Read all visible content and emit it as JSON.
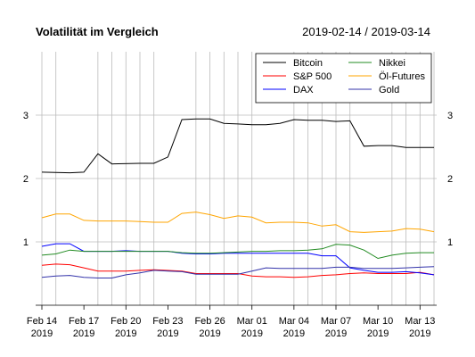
{
  "chart_data": {
    "type": "line",
    "title": "Volatilität im Vergleich",
    "date_range": "2019-02-14 / 2019-03-14",
    "xlabel": "",
    "ylabel": "",
    "ylim": [
      0,
      4
    ],
    "y_ticks": [
      1,
      2,
      3
    ],
    "grid": true,
    "legend_position": "top-right",
    "dates": [
      "2019-02-14",
      "2019-02-15",
      "2019-02-18",
      "2019-02-19",
      "2019-02-20",
      "2019-02-21",
      "2019-02-22",
      "2019-02-25",
      "2019-02-26",
      "2019-02-27",
      "2019-02-28",
      "2019-03-01",
      "2019-03-04",
      "2019-03-05",
      "2019-03-06",
      "2019-03-07",
      "2019-03-08",
      "2019-03-11",
      "2019-03-12",
      "2019-03-13",
      "2019-03-14"
    ],
    "x_tick_labels": [
      {
        "date": "2019-02-14",
        "label": "Feb 14",
        "year": "2019"
      },
      {
        "date": "2019-02-17",
        "label": "Feb 17",
        "year": "2019"
      },
      {
        "date": "2019-02-20",
        "label": "Feb 20",
        "year": "2019"
      },
      {
        "date": "2019-02-23",
        "label": "Feb 23",
        "year": "2019"
      },
      {
        "date": "2019-02-26",
        "label": "Feb 26",
        "year": "2019"
      },
      {
        "date": "2019-03-01",
        "label": "Mar 01",
        "year": "2019"
      },
      {
        "date": "2019-03-04",
        "label": "Mar 04",
        "year": "2019"
      },
      {
        "date": "2019-03-07",
        "label": "Mar 07",
        "year": "2019"
      },
      {
        "date": "2019-03-10",
        "label": "Mar 10",
        "year": "2019"
      },
      {
        "date": "2019-03-13",
        "label": "Mar 13",
        "year": "2019"
      }
    ],
    "series": [
      {
        "name": "Bitcoin",
        "color": "#000000",
        "data": [
          [
            "2019-02-14",
            2.1
          ],
          [
            "2019-02-16",
            2.09
          ],
          [
            "2019-02-17",
            2.1
          ],
          [
            "2019-02-18",
            2.39
          ],
          [
            "2019-02-19",
            2.23
          ],
          [
            "2019-02-21",
            2.24
          ],
          [
            "2019-02-22",
            2.24
          ],
          [
            "2019-02-23",
            2.34
          ],
          [
            "2019-02-24",
            2.93
          ],
          [
            "2019-02-25",
            2.94
          ],
          [
            "2019-02-26",
            2.94
          ],
          [
            "2019-02-27",
            2.87
          ],
          [
            "2019-02-28",
            2.86
          ],
          [
            "2019-03-01",
            2.85
          ],
          [
            "2019-03-02",
            2.85
          ],
          [
            "2019-03-03",
            2.87
          ],
          [
            "2019-03-04",
            2.93
          ],
          [
            "2019-03-05",
            2.92
          ],
          [
            "2019-03-06",
            2.92
          ],
          [
            "2019-03-07",
            2.9
          ],
          [
            "2019-03-08",
            2.91
          ],
          [
            "2019-03-09",
            2.51
          ],
          [
            "2019-03-10",
            2.52
          ],
          [
            "2019-03-11",
            2.52
          ],
          [
            "2019-03-12",
            2.49
          ],
          [
            "2019-03-13",
            2.49
          ],
          [
            "2019-03-14",
            2.49
          ]
        ]
      },
      {
        "name": "S&P 500",
        "color": "#ff0000",
        "data": [
          [
            "2019-02-14",
            0.63
          ],
          [
            "2019-02-15",
            0.65
          ],
          [
            "2019-02-16",
            0.64
          ],
          [
            "2019-02-17",
            0.59
          ],
          [
            "2019-02-18",
            0.54
          ],
          [
            "2019-02-19",
            0.54
          ],
          [
            "2019-02-20",
            0.54
          ],
          [
            "2019-02-21",
            0.55
          ],
          [
            "2019-02-22",
            0.56
          ],
          [
            "2019-02-24",
            0.54
          ],
          [
            "2019-02-25",
            0.5
          ],
          [
            "2019-02-26",
            0.5
          ],
          [
            "2019-02-27",
            0.5
          ],
          [
            "2019-02-28",
            0.5
          ],
          [
            "2019-03-01",
            0.46
          ],
          [
            "2019-03-02",
            0.45
          ],
          [
            "2019-03-03",
            0.45
          ],
          [
            "2019-03-04",
            0.44
          ],
          [
            "2019-03-05",
            0.45
          ],
          [
            "2019-03-06",
            0.47
          ],
          [
            "2019-03-07",
            0.48
          ],
          [
            "2019-03-08",
            0.5
          ],
          [
            "2019-03-09",
            0.51
          ],
          [
            "2019-03-10",
            0.5
          ],
          [
            "2019-03-11",
            0.5
          ],
          [
            "2019-03-12",
            0.5
          ],
          [
            "2019-03-13",
            0.52
          ],
          [
            "2019-03-14",
            0.48
          ]
        ]
      },
      {
        "name": "DAX",
        "color": "#0000ff",
        "data": [
          [
            "2019-02-14",
            0.93
          ],
          [
            "2019-02-15",
            0.97
          ],
          [
            "2019-02-16",
            0.97
          ],
          [
            "2019-02-17",
            0.85
          ],
          [
            "2019-02-18",
            0.85
          ],
          [
            "2019-02-19",
            0.85
          ],
          [
            "2019-02-20",
            0.86
          ],
          [
            "2019-02-21",
            0.85
          ],
          [
            "2019-02-22",
            0.85
          ],
          [
            "2019-02-23",
            0.85
          ],
          [
            "2019-02-24",
            0.82
          ],
          [
            "2019-02-25",
            0.81
          ],
          [
            "2019-02-26",
            0.81
          ],
          [
            "2019-02-27",
            0.82
          ],
          [
            "2019-02-28",
            0.82
          ],
          [
            "2019-03-01",
            0.82
          ],
          [
            "2019-03-02",
            0.82
          ],
          [
            "2019-03-03",
            0.82
          ],
          [
            "2019-03-04",
            0.82
          ],
          [
            "2019-03-05",
            0.82
          ],
          [
            "2019-03-06",
            0.78
          ],
          [
            "2019-03-07",
            0.78
          ],
          [
            "2019-03-08",
            0.59
          ],
          [
            "2019-03-09",
            0.55
          ],
          [
            "2019-03-10",
            0.52
          ],
          [
            "2019-03-11",
            0.52
          ],
          [
            "2019-03-12",
            0.53
          ],
          [
            "2019-03-13",
            0.51
          ],
          [
            "2019-03-14",
            0.48
          ]
        ]
      },
      {
        "name": "Nikkei",
        "color": "#228b22",
        "data": [
          [
            "2019-02-14",
            0.79
          ],
          [
            "2019-02-15",
            0.81
          ],
          [
            "2019-02-16",
            0.87
          ],
          [
            "2019-02-17",
            0.85
          ],
          [
            "2019-02-18",
            0.85
          ],
          [
            "2019-02-19",
            0.85
          ],
          [
            "2019-02-20",
            0.85
          ],
          [
            "2019-02-21",
            0.85
          ],
          [
            "2019-02-22",
            0.85
          ],
          [
            "2019-02-23",
            0.85
          ],
          [
            "2019-02-24",
            0.83
          ],
          [
            "2019-02-25",
            0.82
          ],
          [
            "2019-02-26",
            0.82
          ],
          [
            "2019-02-27",
            0.83
          ],
          [
            "2019-02-28",
            0.84
          ],
          [
            "2019-03-01",
            0.85
          ],
          [
            "2019-03-02",
            0.85
          ],
          [
            "2019-03-03",
            0.86
          ],
          [
            "2019-03-04",
            0.86
          ],
          [
            "2019-03-05",
            0.87
          ],
          [
            "2019-03-06",
            0.89
          ],
          [
            "2019-03-07",
            0.96
          ],
          [
            "2019-03-08",
            0.95
          ],
          [
            "2019-03-09",
            0.87
          ],
          [
            "2019-03-10",
            0.74
          ],
          [
            "2019-03-11",
            0.79
          ],
          [
            "2019-03-12",
            0.82
          ],
          [
            "2019-03-13",
            0.83
          ],
          [
            "2019-03-14",
            0.83
          ]
        ]
      },
      {
        "name": "Öl-Futures",
        "color": "#ffa500",
        "data": [
          [
            "2019-02-14",
            1.38
          ],
          [
            "2019-02-15",
            1.44
          ],
          [
            "2019-02-16",
            1.44
          ],
          [
            "2019-02-17",
            1.34
          ],
          [
            "2019-02-18",
            1.33
          ],
          [
            "2019-02-19",
            1.33
          ],
          [
            "2019-02-20",
            1.33
          ],
          [
            "2019-02-21",
            1.32
          ],
          [
            "2019-02-22",
            1.31
          ],
          [
            "2019-02-23",
            1.31
          ],
          [
            "2019-02-24",
            1.45
          ],
          [
            "2019-02-25",
            1.47
          ],
          [
            "2019-02-26",
            1.43
          ],
          [
            "2019-02-27",
            1.37
          ],
          [
            "2019-02-28",
            1.41
          ],
          [
            "2019-03-01",
            1.39
          ],
          [
            "2019-03-02",
            1.3
          ],
          [
            "2019-03-03",
            1.31
          ],
          [
            "2019-03-04",
            1.31
          ],
          [
            "2019-03-05",
            1.3
          ],
          [
            "2019-03-06",
            1.25
          ],
          [
            "2019-03-07",
            1.27
          ],
          [
            "2019-03-08",
            1.16
          ],
          [
            "2019-03-09",
            1.15
          ],
          [
            "2019-03-10",
            1.16
          ],
          [
            "2019-03-11",
            1.17
          ],
          [
            "2019-03-12",
            1.21
          ],
          [
            "2019-03-13",
            1.2
          ],
          [
            "2019-03-14",
            1.16
          ]
        ]
      },
      {
        "name": "Gold",
        "color": "#3333aa",
        "data": [
          [
            "2019-02-14",
            0.44
          ],
          [
            "2019-02-15",
            0.46
          ],
          [
            "2019-02-16",
            0.47
          ],
          [
            "2019-02-17",
            0.44
          ],
          [
            "2019-02-18",
            0.43
          ],
          [
            "2019-02-19",
            0.43
          ],
          [
            "2019-02-20",
            0.48
          ],
          [
            "2019-02-21",
            0.51
          ],
          [
            "2019-02-22",
            0.55
          ],
          [
            "2019-02-23",
            0.54
          ],
          [
            "2019-02-24",
            0.53
          ],
          [
            "2019-02-25",
            0.49
          ],
          [
            "2019-02-26",
            0.49
          ],
          [
            "2019-02-27",
            0.49
          ],
          [
            "2019-02-28",
            0.49
          ],
          [
            "2019-03-01",
            0.54
          ],
          [
            "2019-03-02",
            0.59
          ],
          [
            "2019-03-03",
            0.58
          ],
          [
            "2019-03-04",
            0.58
          ],
          [
            "2019-03-05",
            0.58
          ],
          [
            "2019-03-06",
            0.58
          ],
          [
            "2019-03-07",
            0.6
          ],
          [
            "2019-03-08",
            0.6
          ],
          [
            "2019-03-09",
            0.58
          ],
          [
            "2019-03-10",
            0.58
          ],
          [
            "2019-03-11",
            0.58
          ],
          [
            "2019-03-12",
            0.59
          ],
          [
            "2019-03-13",
            0.6
          ],
          [
            "2019-03-14",
            0.61
          ]
        ]
      }
    ]
  }
}
